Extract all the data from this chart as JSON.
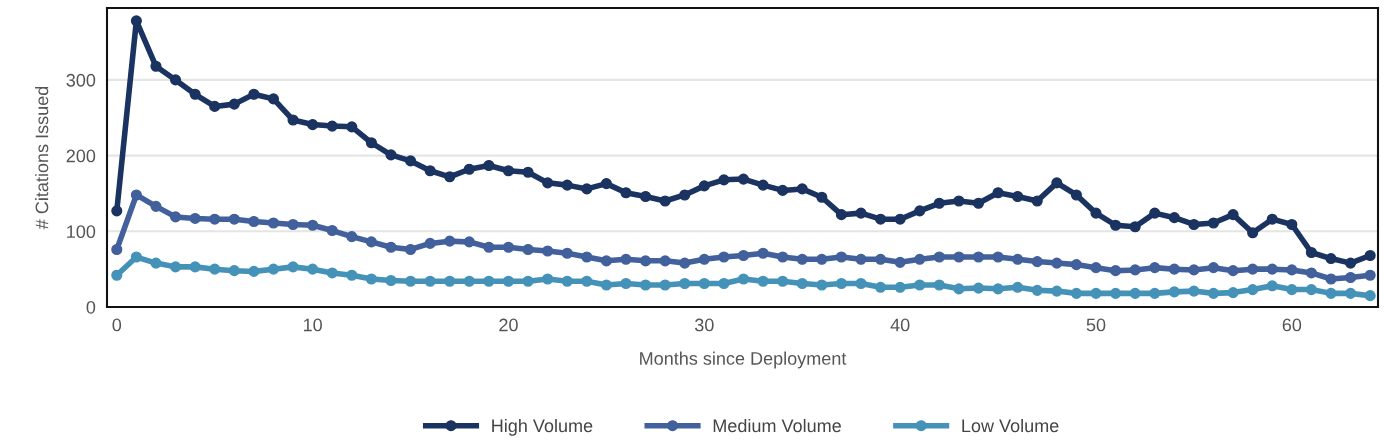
{
  "chart_data": {
    "type": "line",
    "xlabel": "Months since Deployment",
    "ylabel": "# Citations Issued",
    "x": [
      0,
      1,
      2,
      3,
      4,
      5,
      6,
      7,
      8,
      9,
      10,
      11,
      12,
      13,
      14,
      15,
      16,
      17,
      18,
      19,
      20,
      21,
      22,
      23,
      24,
      25,
      26,
      27,
      28,
      29,
      30,
      31,
      32,
      33,
      34,
      35,
      36,
      37,
      38,
      39,
      40,
      41,
      42,
      43,
      44,
      45,
      46,
      47,
      48,
      49,
      50,
      51,
      52,
      53,
      54,
      55,
      56,
      57,
      58,
      59,
      60,
      61,
      62,
      63,
      64
    ],
    "series": [
      {
        "name": "High Volume",
        "color": "#1b3360",
        "values": [
          127,
          378,
          318,
          300,
          281,
          265,
          268,
          281,
          275,
          247,
          241,
          239,
          238,
          217,
          201,
          193,
          180,
          172,
          182,
          187,
          180,
          178,
          164,
          161,
          156,
          163,
          151,
          146,
          140,
          148,
          160,
          168,
          169,
          161,
          154,
          156,
          145,
          122,
          124,
          116,
          116,
          127,
          137,
          140,
          137,
          151,
          146,
          140,
          164,
          148,
          124,
          108,
          106,
          124,
          118,
          109,
          111,
          122,
          98,
          116,
          109,
          72,
          64,
          58,
          68
        ]
      },
      {
        "name": "Medium Volume",
        "color": "#41609c",
        "values": [
          76,
          148,
          133,
          119,
          117,
          116,
          116,
          113,
          111,
          109,
          108,
          101,
          93,
          86,
          79,
          76,
          84,
          87,
          86,
          79,
          79,
          76,
          74,
          71,
          66,
          61,
          63,
          61,
          61,
          58,
          63,
          66,
          68,
          71,
          66,
          63,
          63,
          66,
          63,
          63,
          59,
          63,
          66,
          66,
          66,
          66,
          63,
          60,
          58,
          56,
          52,
          48,
          49,
          52,
          50,
          49,
          52,
          48,
          50,
          50,
          49,
          45,
          37,
          39,
          42
        ]
      },
      {
        "name": "Low Volume",
        "color": "#4592b9",
        "values": [
          42,
          66,
          58,
          53,
          53,
          50,
          48,
          47,
          50,
          53,
          50,
          45,
          42,
          37,
          35,
          34,
          34,
          34,
          34,
          34,
          34,
          34,
          37,
          34,
          34,
          29,
          31,
          29,
          29,
          31,
          31,
          31,
          37,
          34,
          34,
          31,
          29,
          31,
          31,
          26,
          26,
          29,
          29,
          24,
          25,
          24,
          26,
          22,
          21,
          18,
          18,
          18,
          18,
          18,
          20,
          21,
          18,
          19,
          23,
          28,
          23,
          23,
          18,
          18,
          15
        ]
      }
    ],
    "xlim": [
      -0.5,
      64.4
    ],
    "xticks": [
      0,
      10,
      20,
      30,
      40,
      50,
      60
    ],
    "ylim": [
      0,
      395
    ],
    "yticks": [
      0,
      100,
      200,
      300
    ],
    "grid": "y",
    "legend": "bottom",
    "marker": "circle",
    "line_style": "solid"
  }
}
